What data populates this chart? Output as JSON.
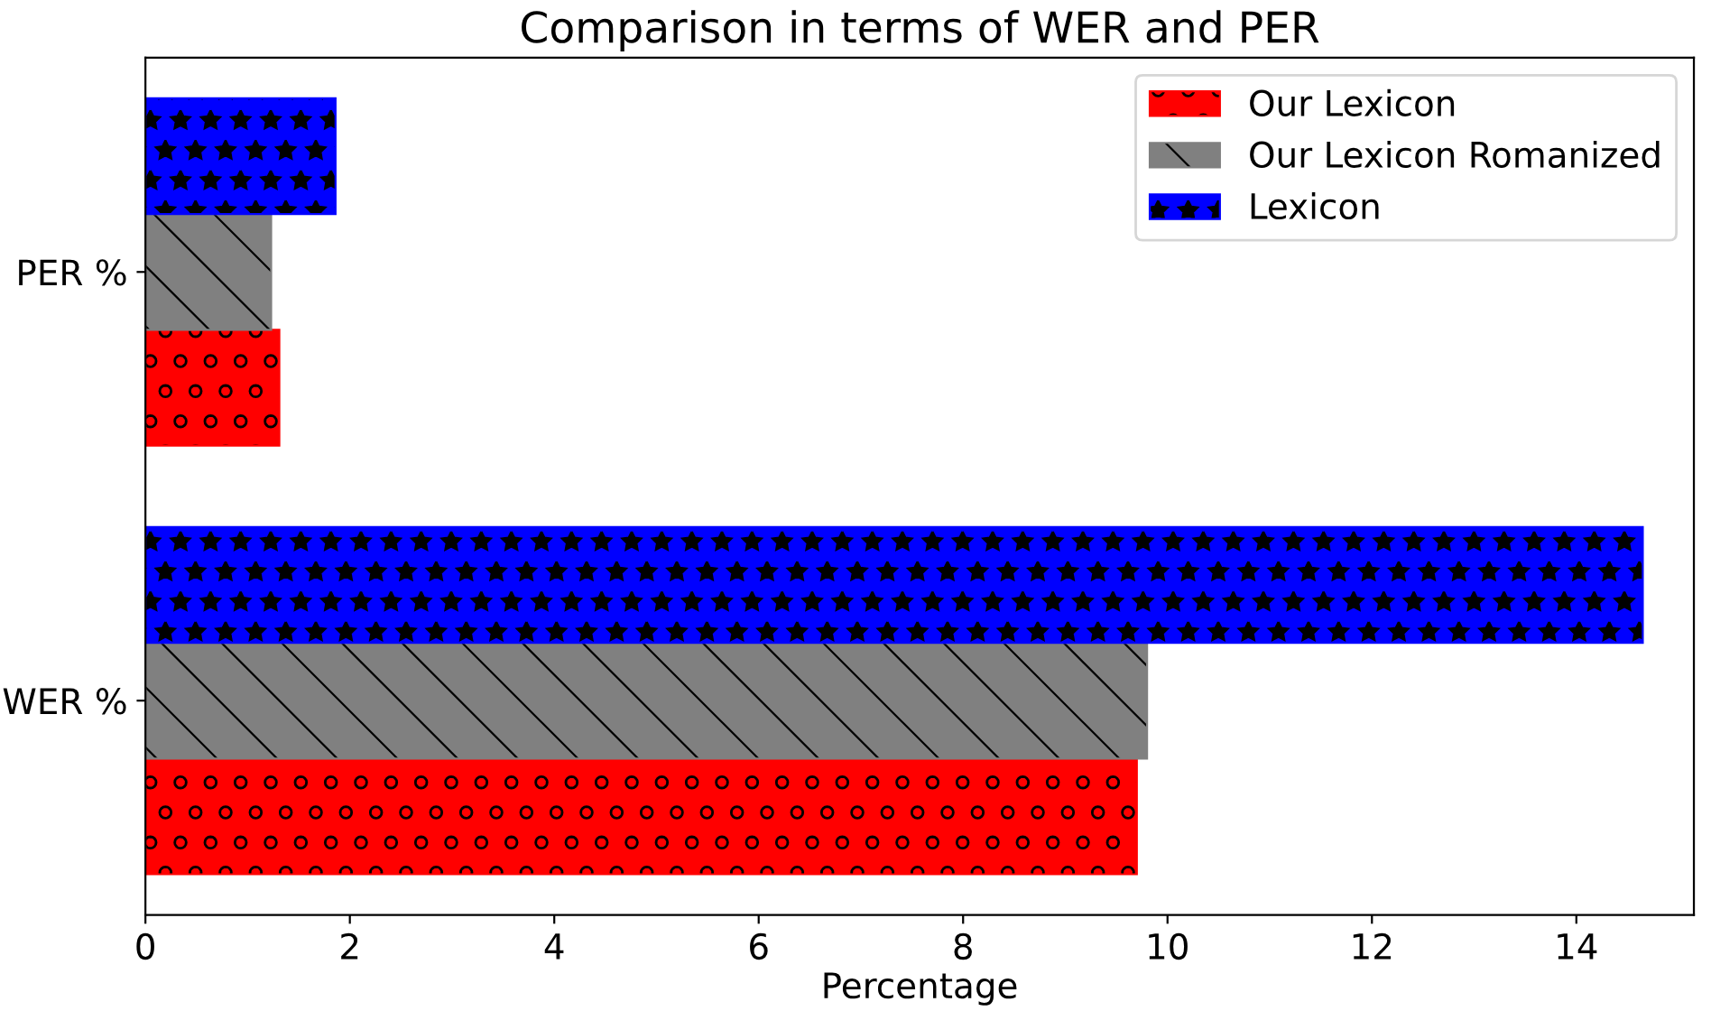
{
  "chart_data": {
    "type": "bar",
    "orientation": "horizontal",
    "title": "Comparison in terms of WER and PER",
    "xlabel": "Percentage",
    "categories": [
      "PER %",
      "WER %"
    ],
    "series": [
      {
        "name": "Our Lexicon",
        "color": "#ff0000",
        "values": [
          1.31,
          9.7
        ]
      },
      {
        "name": "Our Lexicon Romanized",
        "color": "#808080",
        "values": [
          1.23,
          9.8
        ]
      },
      {
        "name": "Lexicon",
        "color": "#0000ff",
        "values": [
          1.86,
          14.65
        ]
      }
    ],
    "xlim": [
      0,
      15.15
    ],
    "xticks": [
      0,
      2,
      4,
      6,
      8,
      10,
      12,
      14
    ],
    "legend": "top right",
    "grid": false
  }
}
